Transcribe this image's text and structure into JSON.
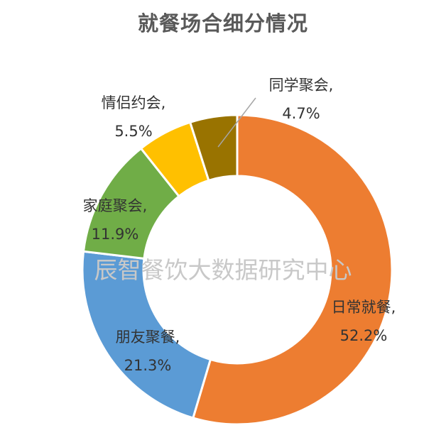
{
  "chart_data": {
    "type": "pie",
    "title": "就餐场合细分情况",
    "slices": [
      {
        "name": "日常就餐,",
        "label": "52.2%",
        "value": 52.2,
        "color": "#ED7D31"
      },
      {
        "name": "朋友聚餐,",
        "label": "21.3%",
        "value": 21.3,
        "color": "#5B9BD5"
      },
      {
        "name": "家庭聚会,",
        "label": "11.9%",
        "value": 11.9,
        "color": "#70AD47"
      },
      {
        "name": "情侣约会,",
        "label": "5.5%",
        "value": 5.5,
        "color": "#FFC000"
      },
      {
        "name": "同学聚会,",
        "label": "4.7%",
        "value": 4.7,
        "color": "#997300"
      }
    ],
    "donut": true,
    "watermark": "辰智餐饮大数据研究中心"
  }
}
